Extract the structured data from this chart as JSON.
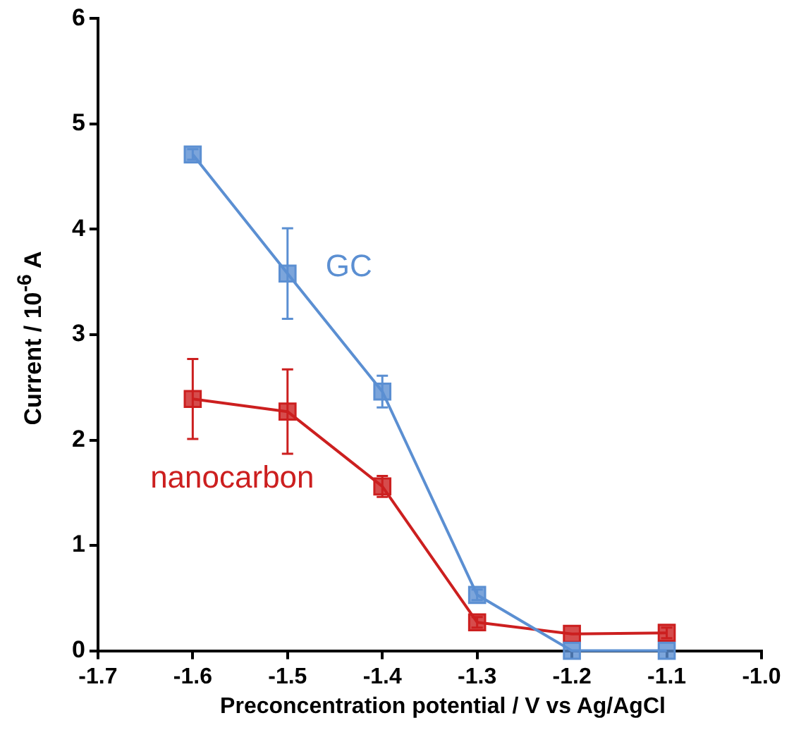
{
  "chart_data": {
    "type": "line",
    "xlabel": "Preconcentration  potential / V vs Ag/AgCl",
    "ylabel": "Current /  10$^{-6}$ A",
    "x": [
      -1.6,
      -1.5,
      -1.4,
      -1.3,
      -1.2,
      -1.1
    ],
    "series": [
      {
        "name": "GC",
        "color": "#5b8fd2",
        "values": [
          4.71,
          3.58,
          2.46,
          0.53,
          0,
          0
        ],
        "errors": [
          0.05,
          0.43,
          0.15,
          0.05,
          null,
          null
        ]
      },
      {
        "name": "nanocarbon",
        "color": "#cc1f1f",
        "values": [
          2.39,
          2.27,
          1.56,
          0.27,
          0.16,
          0.17
        ],
        "errors": [
          0.38,
          0.4,
          0.1,
          0.05,
          null,
          0.05
        ]
      }
    ],
    "xlim": [
      -1.7,
      -1.0
    ],
    "xticks": [
      -1.7,
      -1.6,
      -1.5,
      -1.4,
      -1.3,
      -1.2,
      -1.1,
      {
        "value": -1.0,
        "label": "-1.0"
      }
    ],
    "ylim": [
      0,
      6
    ],
    "yticks": [
      0,
      1,
      2,
      3,
      4,
      5,
      6
    ],
    "grid": false,
    "legend": false,
    "marker": "square",
    "line_style": "solid"
  }
}
